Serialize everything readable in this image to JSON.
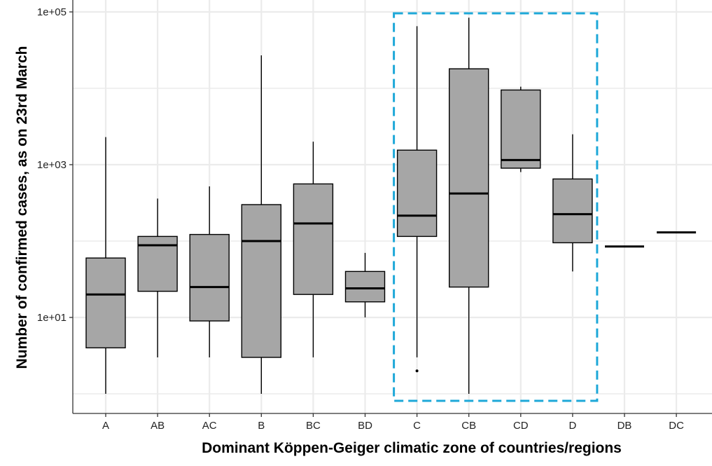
{
  "chart_data": {
    "type": "boxplot",
    "xlabel": "Dominant Köppen-Geiger climatic zone of countries/regions",
    "ylabel": "Number of confirmed cases, as on 23rd March",
    "yscale": "log10",
    "ylim": [
      0.56,
      150000
    ],
    "ytick_values": [
      10,
      1000,
      100000
    ],
    "ytick_labels": [
      "1e+01",
      "1e+03",
      "1e+05"
    ],
    "grid": true,
    "categories": [
      "A",
      "AB",
      "AC",
      "B",
      "BC",
      "BD",
      "C",
      "CB",
      "CD",
      "D",
      "DB",
      "DC"
    ],
    "boxes": [
      {
        "category": "A",
        "min": 1,
        "q1": 4,
        "median": 20,
        "q3": 60,
        "max": 2300
      },
      {
        "category": "AB",
        "min": 3,
        "q1": 22,
        "median": 88,
        "q3": 115,
        "max": 360
      },
      {
        "category": "AC",
        "min": 3,
        "q1": 9,
        "median": 25,
        "q3": 122,
        "max": 520
      },
      {
        "category": "B",
        "min": 1,
        "q1": 3,
        "median": 100,
        "q3": 300,
        "max": 27000
      },
      {
        "category": "BC",
        "min": 3,
        "q1": 20,
        "median": 170,
        "q3": 560,
        "max": 2000
      },
      {
        "category": "BD",
        "min": 10,
        "q1": 16,
        "median": 24,
        "q3": 40,
        "max": 70
      },
      {
        "category": "C",
        "min": 3,
        "q1": 115,
        "median": 215,
        "q3": 1550,
        "max": 65000,
        "outliers": [
          2
        ]
      },
      {
        "category": "CB",
        "min": 1,
        "q1": 25,
        "median": 420,
        "q3": 18000,
        "max": 84000
      },
      {
        "category": "CD",
        "min": 800,
        "q1": 900,
        "median": 1150,
        "q3": 9500,
        "max": 10500
      },
      {
        "category": "D",
        "min": 40,
        "q1": 95,
        "median": 225,
        "q3": 650,
        "max": 2500
      },
      {
        "category": "DB",
        "min": 85,
        "q1": 85,
        "median": 85,
        "q3": 85,
        "max": 85
      },
      {
        "category": "DC",
        "min": 130,
        "q1": 130,
        "median": 130,
        "q3": 130,
        "max": 130
      }
    ],
    "highlight": {
      "from": "C",
      "to": "D",
      "style": "dashed",
      "color": "#1ea8d8"
    },
    "colors": {
      "box_fill": "#a6a6a6",
      "box_stroke": "#000000",
      "grid": "#ebebeb",
      "axis": "#333333"
    }
  }
}
